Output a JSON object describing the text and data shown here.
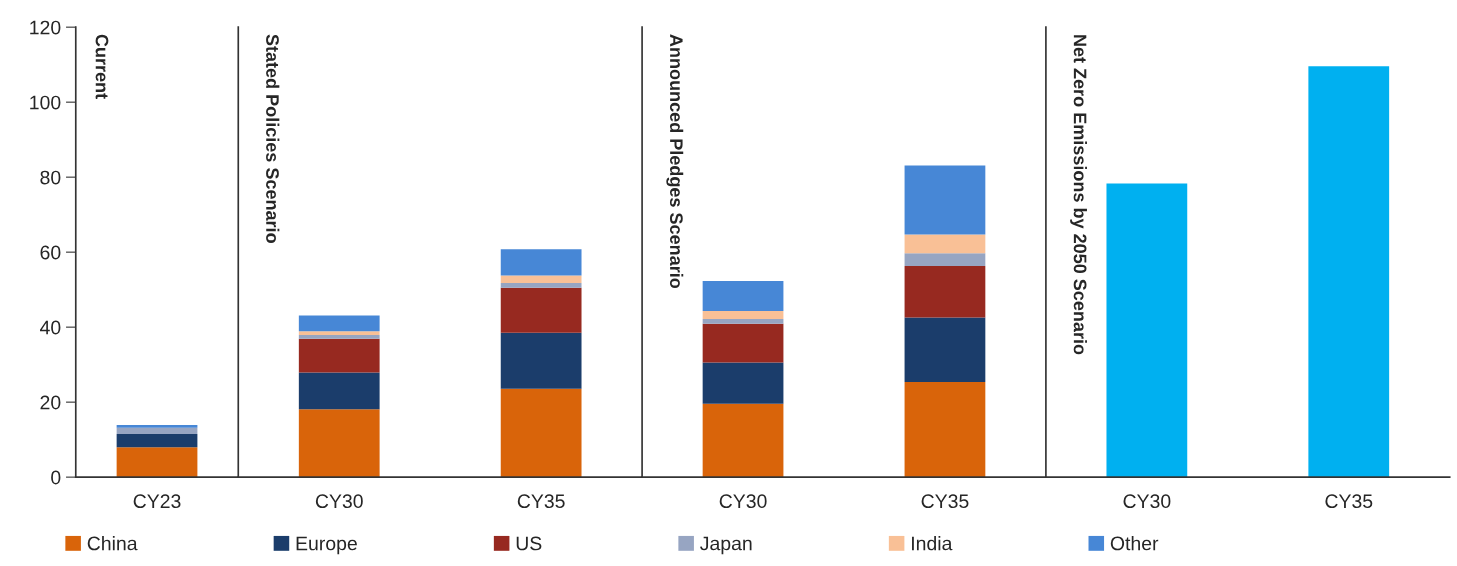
{
  "chart_data": [
    {
      "type": "bar",
      "title": "Current",
      "categories": [
        "CY23"
      ],
      "stacked": true,
      "legend": "bottom",
      "ylim": [
        0,
        120
      ],
      "yticks": [
        0,
        20,
        40,
        60,
        80,
        100,
        120
      ],
      "series": [
        {
          "name": "China",
          "color": "#d9640a",
          "values": [
            8.0
          ]
        },
        {
          "name": "Europe",
          "color": "#1b3d6b",
          "values": [
            3.5
          ]
        },
        {
          "name": "US",
          "color": "#972920",
          "values": [
            0
          ]
        },
        {
          "name": "Japan",
          "color": "#97a5c2",
          "values": [
            1.7
          ]
        },
        {
          "name": "India",
          "color": "#f9c096",
          "values": [
            0
          ]
        },
        {
          "name": "Other",
          "color": "#4787d6",
          "values": [
            0.7
          ]
        }
      ]
    },
    {
      "type": "bar",
      "title": "Stated Policies Scenario",
      "categories": [
        "CY30",
        "CY35"
      ],
      "stacked": true,
      "ylim": [
        0,
        120
      ],
      "yticks": [
        0,
        20,
        40,
        60,
        80,
        100,
        120
      ],
      "tick_labels": "x",
      "series": [
        {
          "color": "#d9640a",
          "values": [
            18.1,
            23.6
          ]
        },
        {
          "color": "#1b3d6b",
          "values": [
            9.8,
            14.9
          ]
        },
        {
          "color": "#972920",
          "values": [
            9.0,
            12.0
          ]
        },
        {
          "color": "#97a5c2",
          "values": [
            1.0,
            1.3
          ]
        },
        {
          "color": "#f9c096",
          "values": [
            1.0,
            2.0
          ]
        },
        {
          "color": "#4787d6",
          "values": [
            4.2,
            7.0
          ]
        }
      ]
    },
    {
      "type": "bar",
      "title": "Announced Pledges Scenario",
      "categories": [
        "CY30",
        "CY35"
      ],
      "stacked": true,
      "ylim": [
        0,
        120
      ],
      "yticks": [
        0,
        20,
        40,
        60,
        80,
        100,
        120
      ],
      "tick_labels": "x",
      "series": [
        {
          "color": "#d9640a",
          "values": [
            19.6,
            25.4
          ]
        },
        {
          "color": "#1b3d6b",
          "values": [
            11.0,
            17.2
          ]
        },
        {
          "color": "#972920",
          "values": [
            10.3,
            13.7
          ]
        },
        {
          "color": "#97a5c2",
          "values": [
            1.3,
            3.4
          ]
        },
        {
          "color": "#f9c096",
          "values": [
            2.1,
            5.0
          ]
        },
        {
          "color": "#4787d6",
          "values": [
            8.0,
            18.4
          ]
        }
      ]
    },
    {
      "type": "bar",
      "title": "Net Zero Emissions by 2050 Scenario",
      "categories": [
        "CY30",
        "CY35"
      ],
      "ylim": [
        0,
        120
      ],
      "yticks": [
        0,
        20,
        40,
        60,
        80,
        100,
        120
      ],
      "tick_labels": "x",
      "series": [
        {
          "color": "#00b0f0",
          "values": [
            78.3,
            109.6
          ]
        }
      ]
    }
  ]
}
